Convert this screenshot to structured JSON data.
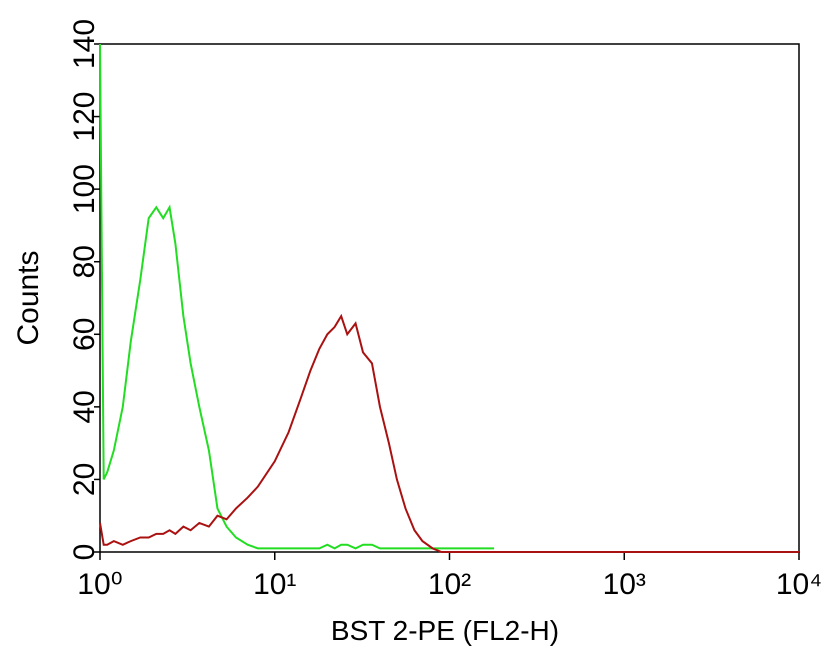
{
  "chart_data": {
    "type": "line",
    "x_label": "BST 2-PE  (FL2-H)",
    "y_label": "Counts",
    "log_x": true,
    "x": [
      1,
      1.05,
      1.1,
      1.2,
      1.35,
      1.5,
      1.7,
      1.9,
      2.1,
      2.3,
      2.5,
      2.7,
      3,
      3.3,
      3.7,
      4.2,
      4.7,
      5.3,
      6,
      7,
      8,
      10,
      12,
      14,
      16,
      18,
      20,
      22,
      24,
      26,
      29,
      32,
      36,
      40,
      45,
      50,
      56,
      63,
      70,
      80,
      90,
      100,
      120,
      150,
      180,
      250,
      500,
      1000,
      2000,
      5000,
      10000
    ],
    "series": [
      {
        "color": "#22dd22",
        "values": [
          140,
          20,
          22,
          28,
          40,
          58,
          75,
          92,
          95,
          92,
          95,
          85,
          65,
          52,
          40,
          28,
          12,
          7,
          4,
          2,
          1,
          1,
          1,
          1,
          1,
          1,
          2,
          1,
          2,
          2,
          1,
          2,
          2,
          1,
          1,
          1,
          1,
          1,
          1,
          1,
          1,
          1,
          1,
          1,
          1,
          null,
          null,
          null,
          null,
          null,
          null
        ]
      },
      {
        "color": "#aa1111",
        "values": [
          8,
          2,
          2,
          3,
          2,
          3,
          4,
          4,
          5,
          5,
          6,
          5,
          7,
          6,
          8,
          7,
          10,
          9,
          12,
          15,
          18,
          25,
          33,
          42,
          50,
          56,
          60,
          62,
          65,
          60,
          63,
          55,
          52,
          40,
          30,
          20,
          12,
          6,
          3,
          1,
          0,
          0,
          0,
          0,
          0,
          0,
          0,
          0,
          0,
          0,
          0
        ]
      }
    ],
    "xlim": [
      1,
      10000
    ],
    "xticks": [
      {
        "value": 1,
        "label": "10⁰"
      },
      {
        "value": 10,
        "label": "10¹"
      },
      {
        "value": 100,
        "label": "10²"
      },
      {
        "value": 1000,
        "label": "10³"
      },
      {
        "value": 10000,
        "label": "10⁴"
      }
    ],
    "ylim": [
      0,
      140
    ],
    "yticks": [
      0,
      20,
      40,
      60,
      80,
      100,
      120,
      140
    ]
  }
}
